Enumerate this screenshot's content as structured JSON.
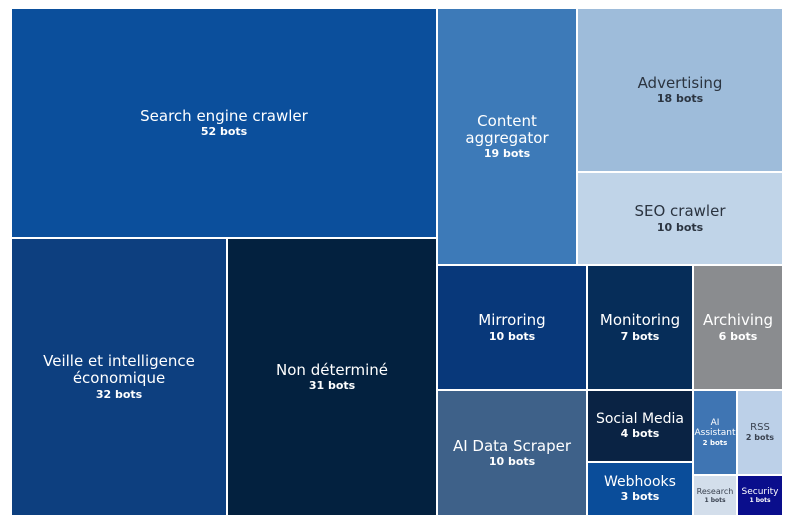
{
  "chart_data": {
    "type": "treemap",
    "unit": "bots",
    "items": [
      {
        "category": "Search engine crawler",
        "value": 52,
        "label": "52 bots",
        "color": "#0b4f9c",
        "text_color": "#ffffff"
      },
      {
        "category": "Veille et intelligence économique",
        "value": 32,
        "label": "32 bots",
        "color": "#0d3f7f",
        "text_color": "#ffffff"
      },
      {
        "category": "Non déterminé",
        "value": 31,
        "label": "31 bots",
        "color": "#03213f",
        "text_color": "#ffffff"
      },
      {
        "category": "Content aggregator",
        "value": 19,
        "label": "19 bots",
        "color": "#3d7ab8",
        "text_color": "#ffffff"
      },
      {
        "category": "Advertising",
        "value": 18,
        "label": "18 bots",
        "color": "#9ebcda",
        "text_color": "#2b3440"
      },
      {
        "category": "SEO crawler",
        "value": 10,
        "label": "10 bots",
        "color": "#c0d4e8",
        "text_color": "#2b3440"
      },
      {
        "category": "Mirroring",
        "value": 10,
        "label": "10 bots",
        "color": "#08387a",
        "text_color": "#ffffff"
      },
      {
        "category": "Monitoring",
        "value": 7,
        "label": "7 bots",
        "color": "#062d59",
        "text_color": "#ffffff"
      },
      {
        "category": "Archiving",
        "value": 6,
        "label": "6 bots",
        "color": "#8a8c8f",
        "text_color": "#ffffff"
      },
      {
        "category": "AI Data Scraper",
        "value": 10,
        "label": "10 bots",
        "color": "#3e6189",
        "text_color": "#ffffff"
      },
      {
        "category": "Social Media",
        "value": 4,
        "label": "4 bots",
        "color": "#0a2344",
        "text_color": "#ffffff"
      },
      {
        "category": "Webhooks",
        "value": 3,
        "label": "3 bots",
        "color": "#0a4d9a",
        "text_color": "#ffffff"
      },
      {
        "category": "AI Assistant",
        "value": 2,
        "label": "2 bots",
        "color": "#3f75b3",
        "text_color": "#ffffff"
      },
      {
        "category": "RSS",
        "value": 2,
        "label": "2 bots",
        "color": "#bcd0e8",
        "text_color": "#3a4250"
      },
      {
        "category": "Research",
        "value": 1,
        "label": "1 bots",
        "color": "#d3deeb",
        "text_color": "#3a4250"
      },
      {
        "category": "Security",
        "value": 1,
        "label": "1 bots",
        "color": "#0a0e8c",
        "text_color": "#ffffff"
      }
    ]
  }
}
